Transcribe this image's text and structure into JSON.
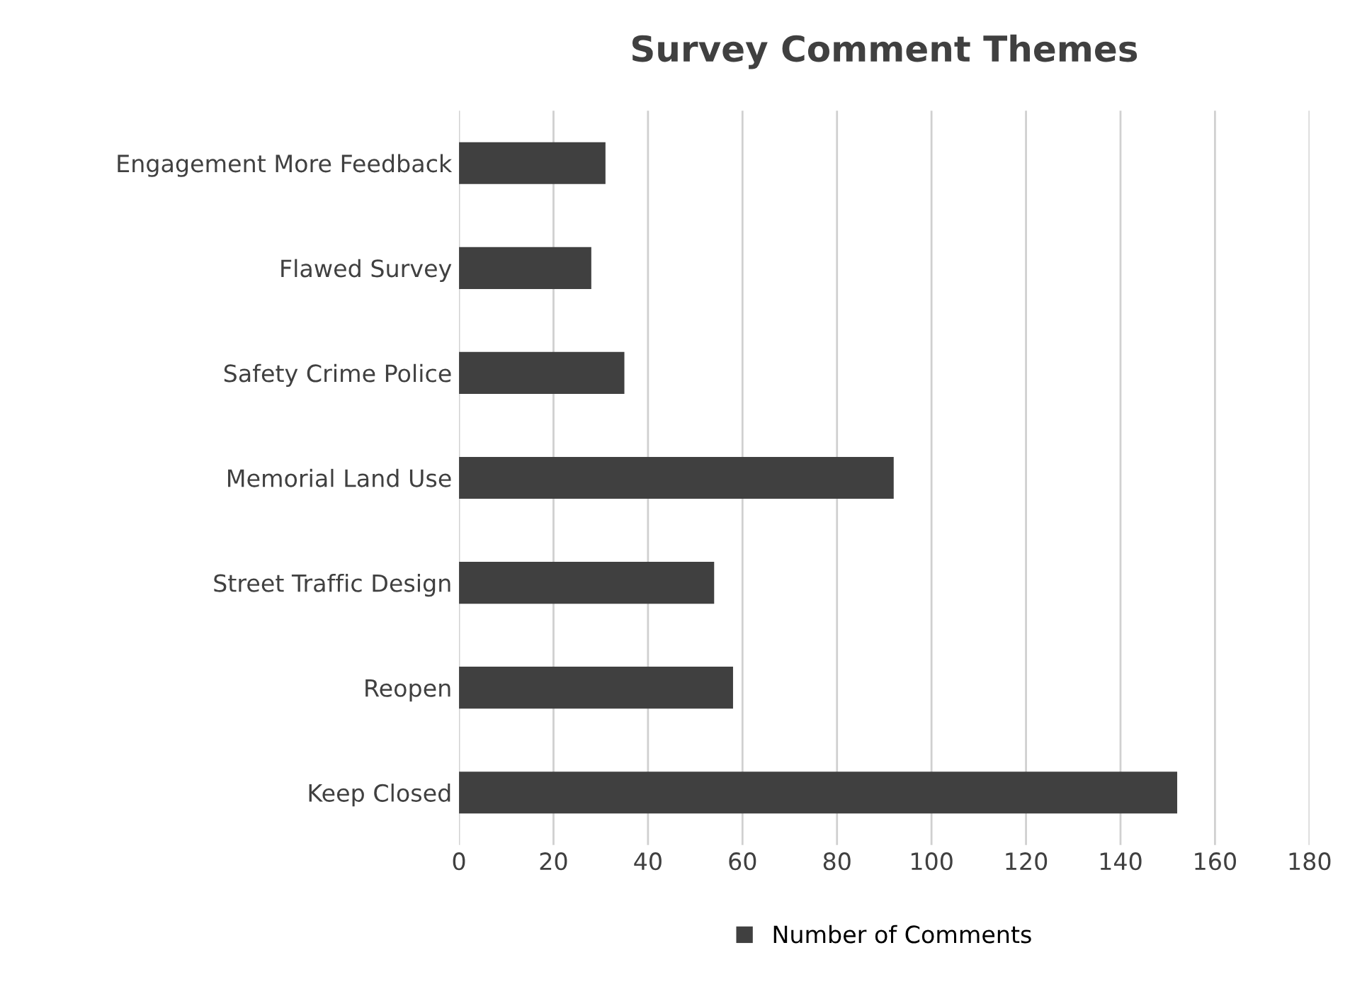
{
  "chart_data": {
    "type": "bar",
    "orientation": "horizontal",
    "title": "Survey Comment Themes",
    "categories": [
      "Engagement More Feedback",
      "Flawed Survey",
      "Safety Crime Police",
      "Memorial Land Use",
      "Street Traffic Design",
      "Reopen",
      "Keep Closed"
    ],
    "series": [
      {
        "name": "Number of Comments",
        "color": "#404040",
        "values": [
          31,
          28,
          35,
          92,
          54,
          58,
          152
        ]
      }
    ],
    "xlim": [
      0,
      180
    ],
    "xticks": [
      0,
      20,
      40,
      60,
      80,
      100,
      120,
      140,
      160,
      180
    ],
    "grid": "x",
    "legend": "bottom"
  }
}
